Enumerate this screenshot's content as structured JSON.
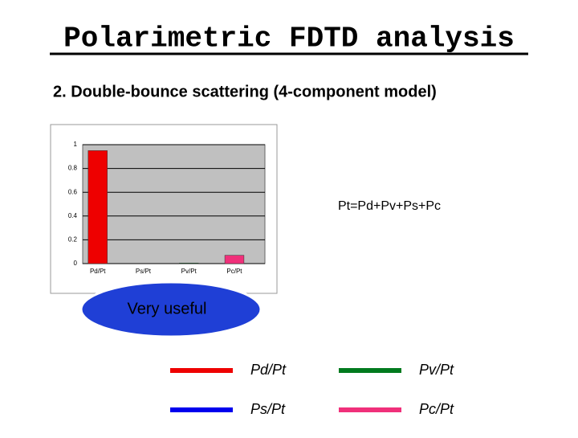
{
  "slide": {
    "title": "Polarimetric FDTD analysis",
    "subtitle": "2. Double-bounce scattering (4-component model)",
    "callout": "Very useful"
  },
  "chart_data": {
    "type": "bar",
    "categories": [
      "Pd/Pt",
      "Ps/Pt",
      "Pv/Pt",
      "Pc/Pt"
    ],
    "values": [
      0.95,
      0,
      0.005,
      0.07
    ],
    "colors": [
      "#ee0000",
      "#0000ee",
      "#007a1e",
      "#f0307a"
    ],
    "ylim": [
      0,
      1
    ],
    "yticks": [
      0,
      0.2,
      0.4,
      0.6,
      0.8,
      1
    ],
    "grid": true,
    "annotation": "Pt=Pd+Pv+Ps+Pc"
  }
}
